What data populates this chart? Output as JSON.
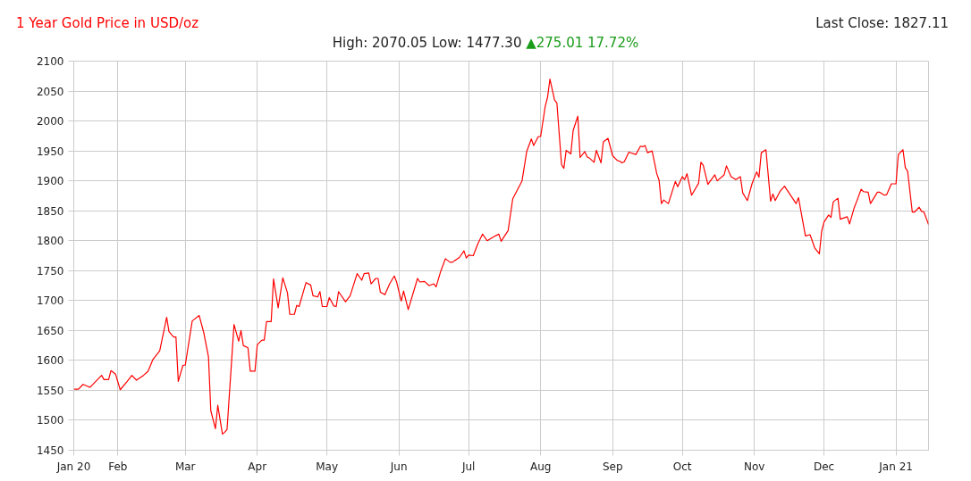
{
  "chart_data": {
    "type": "line",
    "title": "1 Year Gold Price in USD/oz",
    "subtitle": "High: 2070.05 Low: 1477.30",
    "annotations": [
      "Last Close: 1827.11",
      "▲275.01 17.72%"
    ],
    "x": [
      "2020-01-13",
      "2020-01-15",
      "2020-01-17",
      "2020-01-20",
      "2020-01-22",
      "2020-01-25",
      "2020-01-26",
      "2020-01-28",
      "2020-01-29",
      "2020-01-31",
      "2020-02-02",
      "2020-02-05",
      "2020-02-07",
      "2020-02-09",
      "2020-02-12",
      "2020-02-14",
      "2020-02-16",
      "2020-02-19",
      "2020-02-22",
      "2020-02-23",
      "2020-02-25",
      "2020-02-26",
      "2020-02-27",
      "2020-02-29",
      "2020-03-01",
      "2020-03-04",
      "2020-03-07",
      "2020-03-09",
      "2020-03-11",
      "2020-03-12",
      "2020-03-14",
      "2020-03-15",
      "2020-03-17",
      "2020-03-18",
      "2020-03-19",
      "2020-03-22",
      "2020-03-24",
      "2020-03-25",
      "2020-03-26",
      "2020-03-28",
      "2020-03-29",
      "2020-03-31",
      "2020-04-01",
      "2020-04-03",
      "2020-04-04",
      "2020-04-05",
      "2020-04-07",
      "2020-04-08",
      "2020-04-10",
      "2020-04-12",
      "2020-04-14",
      "2020-04-15",
      "2020-04-17",
      "2020-04-18",
      "2020-04-19",
      "2020-04-22",
      "2020-04-24",
      "2020-04-25",
      "2020-04-27",
      "2020-04-28",
      "2020-04-29",
      "2020-05-01",
      "2020-05-02",
      "2020-05-04",
      "2020-05-05",
      "2020-05-06",
      "2020-05-09",
      "2020-05-11",
      "2020-05-14",
      "2020-05-16",
      "2020-05-17",
      "2020-05-19",
      "2020-05-20",
      "2020-05-22",
      "2020-05-23",
      "2020-05-24",
      "2020-05-26",
      "2020-05-28",
      "2020-05-30",
      "2020-05-31",
      "2020-06-02",
      "2020-06-03",
      "2020-06-05",
      "2020-06-09",
      "2020-06-10",
      "2020-06-12",
      "2020-06-14",
      "2020-06-16",
      "2020-06-17",
      "2020-06-19",
      "2020-06-21",
      "2020-06-23",
      "2020-06-24",
      "2020-06-27",
      "2020-06-29",
      "2020-06-30",
      "2020-07-01",
      "2020-07-03",
      "2020-07-05",
      "2020-07-07",
      "2020-07-09",
      "2020-07-12",
      "2020-07-14",
      "2020-07-15",
      "2020-07-18",
      "2020-07-20",
      "2020-07-24",
      "2020-07-26",
      "2020-07-28",
      "2020-07-29",
      "2020-07-31",
      "2020-08-01",
      "2020-08-03",
      "2020-08-04",
      "2020-08-05",
      "2020-08-07",
      "2020-08-08",
      "2020-08-10",
      "2020-08-11",
      "2020-08-12",
      "2020-08-14",
      "2020-08-15",
      "2020-08-17",
      "2020-08-18",
      "2020-08-20",
      "2020-08-21",
      "2020-08-22",
      "2020-08-24",
      "2020-08-25",
      "2020-08-27",
      "2020-08-28",
      "2020-08-30",
      "2020-09-01",
      "2020-09-03",
      "2020-09-04",
      "2020-09-05",
      "2020-09-06",
      "2020-09-08",
      "2020-09-11",
      "2020-09-13",
      "2020-09-14",
      "2020-09-15",
      "2020-09-16",
      "2020-09-18",
      "2020-09-20",
      "2020-09-21",
      "2020-09-22",
      "2020-09-23",
      "2020-09-25",
      "2020-09-28",
      "2020-09-29",
      "2020-10-01",
      "2020-10-02",
      "2020-10-03",
      "2020-10-05",
      "2020-10-08",
      "2020-10-09",
      "2020-10-10",
      "2020-10-12",
      "2020-10-15",
      "2020-10-16",
      "2020-10-19",
      "2020-10-20",
      "2020-10-22",
      "2020-10-24",
      "2020-10-26",
      "2020-10-27",
      "2020-10-29",
      "2020-10-31",
      "2020-11-02",
      "2020-11-03",
      "2020-11-04",
      "2020-11-06",
      "2020-11-08",
      "2020-11-09",
      "2020-11-10",
      "2020-11-12",
      "2020-11-14",
      "2020-11-19",
      "2020-11-20",
      "2020-11-23",
      "2020-11-25",
      "2020-11-27",
      "2020-11-29",
      "2020-11-30",
      "2020-12-01",
      "2020-12-03",
      "2020-12-04",
      "2020-12-05",
      "2020-12-07",
      "2020-12-08",
      "2020-12-11",
      "2020-12-12",
      "2020-12-14",
      "2020-12-15",
      "2020-12-17",
      "2020-12-18",
      "2020-12-20",
      "2020-12-21",
      "2020-12-24",
      "2020-12-25",
      "2020-12-27",
      "2020-12-28",
      "2020-12-30",
      "2021-01-01",
      "2021-01-02",
      "2021-01-04",
      "2021-01-05",
      "2021-01-06",
      "2021-01-08",
      "2021-01-09",
      "2021-01-11",
      "2021-01-12",
      "2021-01-13",
      "2021-01-15"
    ],
    "series": [
      {
        "color": "#ff0000",
        "values": [
          1552,
          1552,
          1560,
          1555,
          1563,
          1575,
          1568,
          1568,
          1583,
          1577,
          1551,
          1565,
          1575,
          1567,
          1575,
          1582,
          1601,
          1616,
          1672,
          1648,
          1639,
          1639,
          1565,
          1592,
          1592,
          1666,
          1675,
          1646,
          1606,
          1516,
          1486,
          1525,
          1477,
          1480,
          1485,
          1660,
          1632,
          1650,
          1625,
          1621,
          1582,
          1582,
          1626,
          1634,
          1634,
          1665,
          1665,
          1736,
          1688,
          1738,
          1713,
          1677,
          1677,
          1692,
          1690,
          1730,
          1726,
          1708,
          1706,
          1715,
          1690,
          1690,
          1705,
          1691,
          1690,
          1715,
          1698,
          1708,
          1745,
          1734,
          1745,
          1746,
          1728,
          1737,
          1737,
          1714,
          1710,
          1728,
          1741,
          1731,
          1699,
          1716,
          1685,
          1737,
          1731,
          1732,
          1725,
          1728,
          1723,
          1749,
          1770,
          1764,
          1764,
          1772,
          1783,
          1771,
          1776,
          1775,
          1795,
          1811,
          1800,
          1807,
          1811,
          1799,
          1817,
          1870,
          1900,
          1949,
          1970,
          1959,
          1974,
          1974,
          2025,
          2040,
          2070,
          2035,
          2030,
          1927,
          1921,
          1951,
          1945,
          1984,
          2008,
          1939,
          1949,
          1940,
          1938,
          1931,
          1951,
          1930,
          1965,
          1971,
          1942,
          1934,
          1933,
          1930,
          1932,
          1948,
          1944,
          1958,
          1957,
          1959,
          1947,
          1950,
          1912,
          1901,
          1862,
          1868,
          1862,
          1899,
          1890,
          1907,
          1902,
          1912,
          1876,
          1896,
          1931,
          1926,
          1894,
          1910,
          1900,
          1910,
          1925,
          1907,
          1902,
          1907,
          1880,
          1867,
          1895,
          1915,
          1906,
          1947,
          1952,
          1866,
          1878,
          1867,
          1882,
          1891,
          1862,
          1872,
          1808,
          1810,
          1788,
          1778,
          1816,
          1831,
          1843,
          1839,
          1865,
          1871,
          1836,
          1840,
          1828,
          1855,
          1865,
          1886,
          1882,
          1881,
          1862,
          1881,
          1881,
          1876,
          1877,
          1895,
          1895,
          1944,
          1952,
          1922,
          1916,
          1848,
          1848,
          1856,
          1849,
          1848,
          1827
        ]
      }
    ],
    "xlim": [
      "2020-01-13",
      "2021-01-15"
    ],
    "xticks": [
      {
        "value": "2020-01-13",
        "label": "Jan 20"
      },
      {
        "value": "2020-02-01",
        "label": "Feb"
      },
      {
        "value": "2020-03-01",
        "label": "Mar"
      },
      {
        "value": "2020-04-01",
        "label": "Apr"
      },
      {
        "value": "2020-05-01",
        "label": "May"
      },
      {
        "value": "2020-06-01",
        "label": "Jun"
      },
      {
        "value": "2020-07-01",
        "label": "Jul"
      },
      {
        "value": "2020-08-01",
        "label": "Aug"
      },
      {
        "value": "2020-09-01",
        "label": "Sep"
      },
      {
        "value": "2020-10-01",
        "label": "Oct"
      },
      {
        "value": "2020-11-01",
        "label": "Nov"
      },
      {
        "value": "2020-12-01",
        "label": "Dec"
      },
      {
        "value": "2021-01-01",
        "label": "Jan 21"
      }
    ],
    "ylim": [
      1450,
      2100
    ],
    "yticks": [
      1450,
      1500,
      1550,
      1600,
      1650,
      1700,
      1750,
      1800,
      1850,
      1900,
      1950,
      2000,
      2050,
      2100
    ],
    "grid": true
  }
}
